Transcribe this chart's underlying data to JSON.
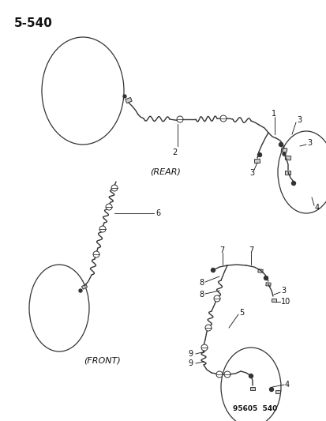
{
  "title": "5-540",
  "page_number": "95605  540",
  "background_color": "#ffffff",
  "line_color": "#333333",
  "text_color": "#111111",
  "rear_label": "(REAR)",
  "front_label": "(FRONT)",
  "figsize": [
    4.14,
    5.33
  ],
  "dpi": 100,
  "xlim": [
    0,
    414
  ],
  "ylim": [
    0,
    533
  ]
}
